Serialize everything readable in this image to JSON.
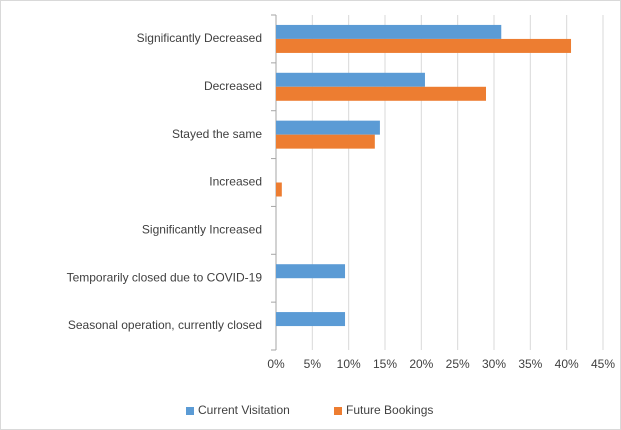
{
  "chart_data": {
    "type": "bar",
    "orientation": "horizontal",
    "categories": [
      "Significantly Decreased",
      "Decreased",
      "Stayed the same",
      "Increased",
      "Significantly Increased",
      "Temporarily closed due to COVID-19",
      "Seasonal operation, currently closed"
    ],
    "series": [
      {
        "name": "Current Visitation",
        "color": "#5b9bd5",
        "values": [
          31,
          20.5,
          14.3,
          0,
          0,
          9.5,
          9.5
        ]
      },
      {
        "name": "Future Bookings",
        "color": "#ed7d31",
        "values": [
          40.6,
          28.9,
          13.6,
          0.8,
          0,
          0,
          0
        ]
      }
    ],
    "xlim": [
      0,
      45
    ],
    "xticks": [
      {
        "value": 0,
        "label": "0%"
      },
      {
        "value": 5,
        "label": "5%"
      },
      {
        "value": 10,
        "label": "10%"
      },
      {
        "value": 15,
        "label": "15%"
      },
      {
        "value": 20,
        "label": "20%"
      },
      {
        "value": 25,
        "label": "25%"
      },
      {
        "value": 30,
        "label": "30%"
      },
      {
        "value": 35,
        "label": "35%"
      },
      {
        "value": 40,
        "label": "40%"
      },
      {
        "value": 45,
        "label": "45%"
      }
    ],
    "grid": true,
    "legend": "bottom"
  }
}
